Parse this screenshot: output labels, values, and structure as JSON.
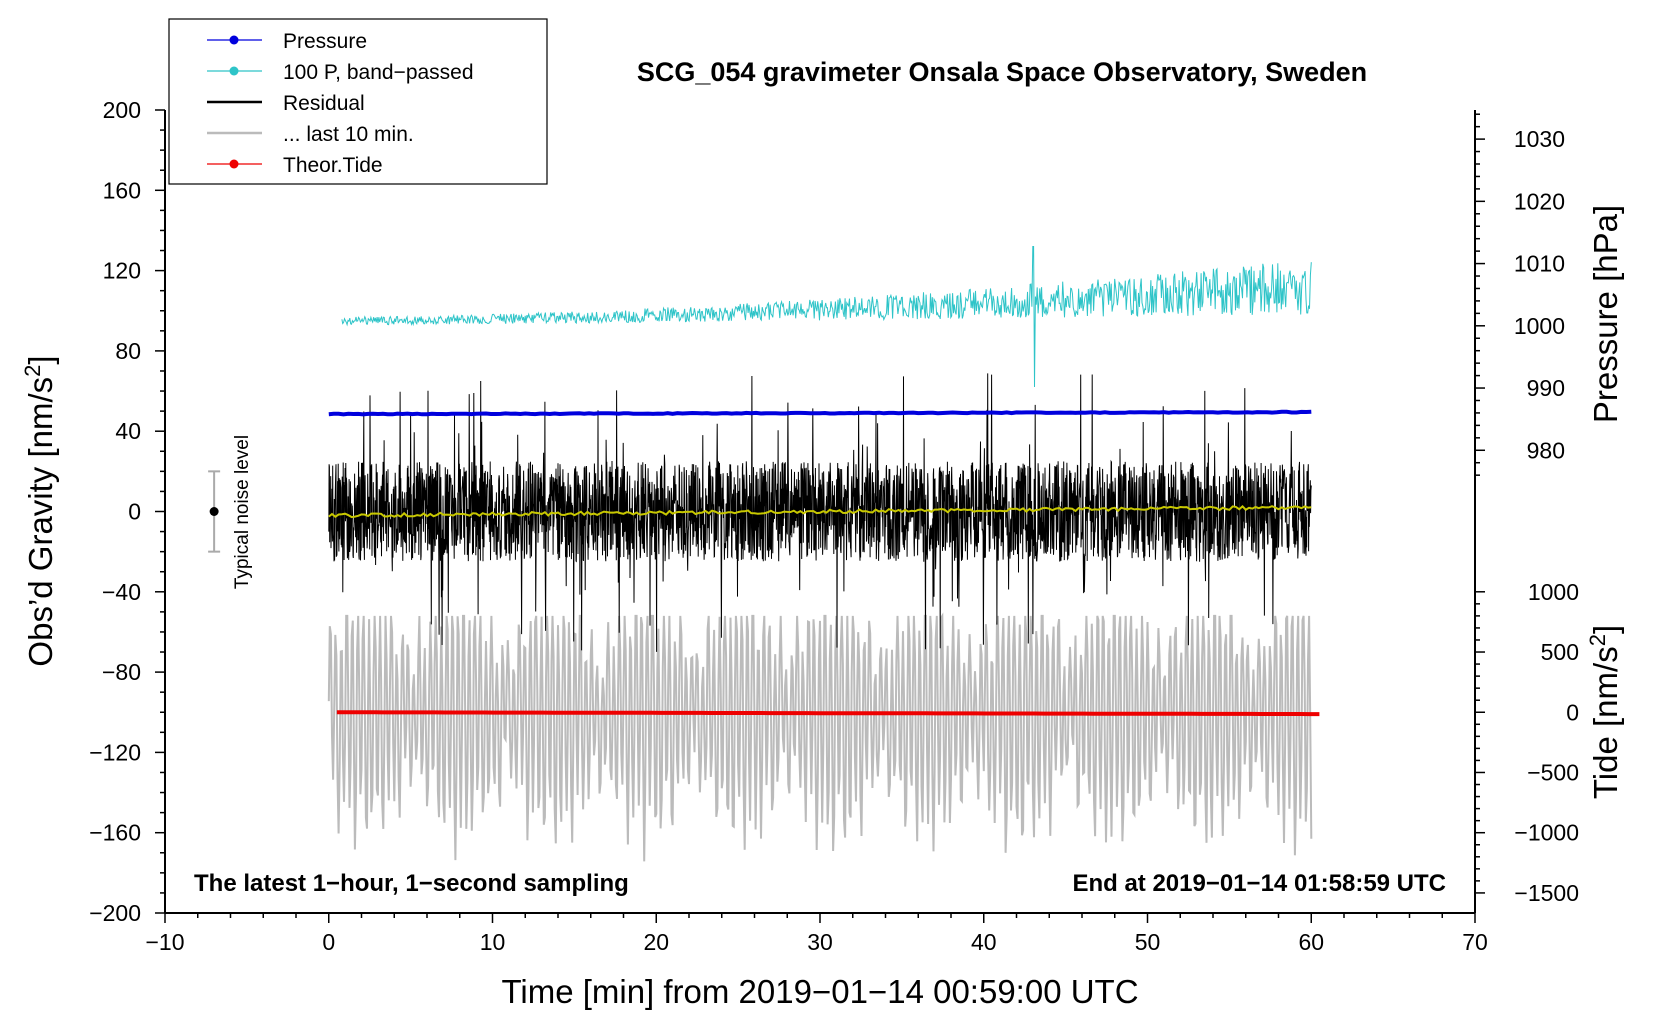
{
  "chart_data": {
    "type": "line",
    "title": "SCG_054 gravimeter Onsala Space Observatory, Sweden",
    "xlabel": "Time [min] from 2019−01−14 00:59:00 UTC",
    "ylabel": "Obs’d Gravity [nm/s",
    "ylabel_sup": "2",
    "ylabel_close": "]",
    "right_pressure_label": "Pressure [hPa]",
    "right_tide_label": "Tide [nm/s",
    "right_tide_sup": "2",
    "right_tide_close": "]",
    "xlim": [
      -10,
      70
    ],
    "ylim": [
      -200,
      200
    ],
    "x_ticks": [
      {
        "value": -10,
        "label": "−10"
      },
      {
        "value": 0,
        "label": "0"
      },
      {
        "value": 10,
        "label": "10"
      },
      {
        "value": 20,
        "label": "20"
      },
      {
        "value": 30,
        "label": "30"
      },
      {
        "value": 40,
        "label": "40"
      },
      {
        "value": 50,
        "label": "50"
      },
      {
        "value": 60,
        "label": "60"
      },
      {
        "value": 70,
        "label": "70"
      }
    ],
    "y_ticks": [
      {
        "value": 200,
        "label": "200"
      },
      {
        "value": 160,
        "label": "160"
      },
      {
        "value": 120,
        "label": "120"
      },
      {
        "value": 80,
        "label": "80"
      },
      {
        "value": 40,
        "label": "40"
      },
      {
        "value": 0,
        "label": "0"
      },
      {
        "value": -40,
        "label": "−40"
      },
      {
        "value": -80,
        "label": "−80"
      },
      {
        "value": -120,
        "label": "−120"
      },
      {
        "value": -160,
        "label": "−160"
      },
      {
        "value": -200,
        "label": "−200"
      }
    ],
    "pressure_axis": {
      "gravity_at_1000": 92.5,
      "gravity_per_hPa": 3.1,
      "ticks": [
        {
          "value": 1030,
          "label": "1030"
        },
        {
          "value": 1020,
          "label": "1020"
        },
        {
          "value": 1010,
          "label": "1010"
        },
        {
          "value": 1000,
          "label": "1000"
        },
        {
          "value": 990,
          "label": "990"
        },
        {
          "value": 980,
          "label": "980"
        }
      ]
    },
    "tide_axis": {
      "gravity_at_0": -100,
      "gravity_per_unit": 0.06,
      "ticks": [
        {
          "value": 1000,
          "label": "1000"
        },
        {
          "value": 500,
          "label": "500"
        },
        {
          "value": 0,
          "label": "0"
        },
        {
          "value": -500,
          "label": "−500"
        },
        {
          "value": -1000,
          "label": "−1000"
        },
        {
          "value": -1500,
          "label": "−1500"
        }
      ]
    },
    "series": [
      {
        "name": "Pressure",
        "color": "#0000dd",
        "x_range": [
          0,
          60
        ],
        "approx_gravity_level": [
          48.5,
          49.5
        ]
      },
      {
        "name": "100 P, band−passed",
        "color": "#2ec4c8",
        "x_range": [
          0.8,
          60
        ],
        "approx_gravity_level": [
          95,
          112
        ],
        "amplitude_growth": [
          2,
          14
        ]
      },
      {
        "name": "Residual",
        "color": "#000000",
        "x_range": [
          0,
          60
        ],
        "approx_range": [
          -85,
          85
        ],
        "typical_amplitude": 25
      },
      {
        "name": "... last 10 min.",
        "color": "#bbbbbb",
        "x_range": [
          0,
          60
        ],
        "center": -100,
        "amplitude": 60
      },
      {
        "name": "Theor.Tide",
        "color": "#ee0000",
        "x_range": [
          0.5,
          60.5
        ],
        "approx_tide": [
          0,
          -15
        ]
      },
      {
        "name": "Mean residual",
        "color": "#c8c800",
        "x_range": [
          0,
          60
        ],
        "approx_gravity_level": [
          -2,
          2
        ]
      }
    ],
    "legend": [
      {
        "label": "Pressure",
        "color": "#0000dd",
        "marker": true
      },
      {
        "label": "100 P, band−passed",
        "color": "#2ec4c8",
        "marker": true
      },
      {
        "label": "Residual",
        "color": "#000000",
        "marker": false
      },
      {
        "label": "... last 10 min.",
        "color": "#bbbbbb",
        "marker": false
      },
      {
        "label": "Theor.Tide",
        "color": "#ee0000",
        "marker": true
      }
    ],
    "noise_bar": {
      "x": -7,
      "center": 0,
      "half_range": 20,
      "label": "Typical noise level"
    },
    "notes": {
      "left": "The latest 1−hour, 1−second sampling",
      "right": "End at 2019−01−14 01:58:59 UTC"
    }
  }
}
